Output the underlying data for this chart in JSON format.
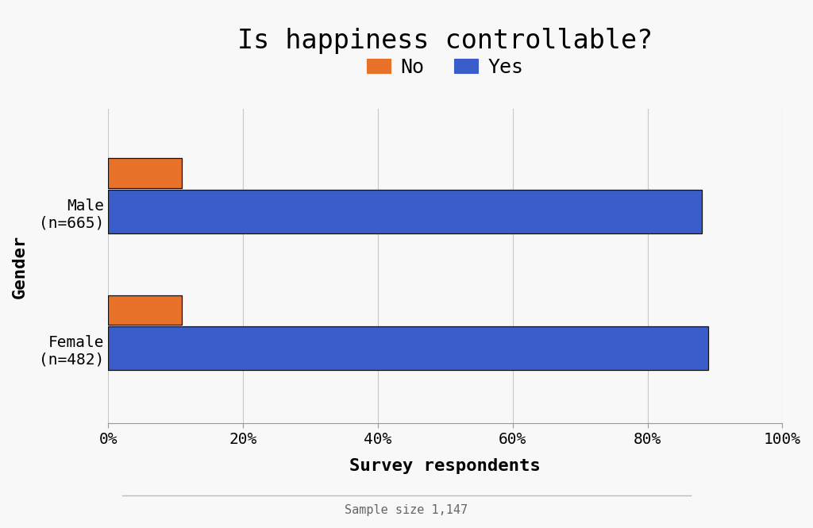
{
  "title": "Is happiness controllable?",
  "categories": [
    "Male\n(n=665)",
    "Female\n(n=482)"
  ],
  "no_values": [
    11.0,
    11.0
  ],
  "yes_values": [
    88.0,
    89.0
  ],
  "no_color": "#E8722A",
  "yes_color": "#3B5DC9",
  "xlabel": "Survey respondents",
  "ylabel": "Gender",
  "xlim": [
    0,
    100
  ],
  "xticks": [
    0,
    20,
    40,
    60,
    80,
    100
  ],
  "xticklabels": [
    "0%",
    "20%",
    "40%",
    "60%",
    "80%",
    "100%"
  ],
  "legend_labels": [
    "No",
    "Yes"
  ],
  "footnote": "Sample size 1,147",
  "background_color": "#F0F0F0",
  "plot_bg_color": "#F8F8F8",
  "no_bar_height": 0.22,
  "yes_bar_height": 0.32,
  "title_fontsize": 24,
  "axis_label_fontsize": 16,
  "tick_fontsize": 14,
  "legend_fontsize": 18,
  "footnote_fontsize": 11,
  "bar_edge_color": "#111111"
}
